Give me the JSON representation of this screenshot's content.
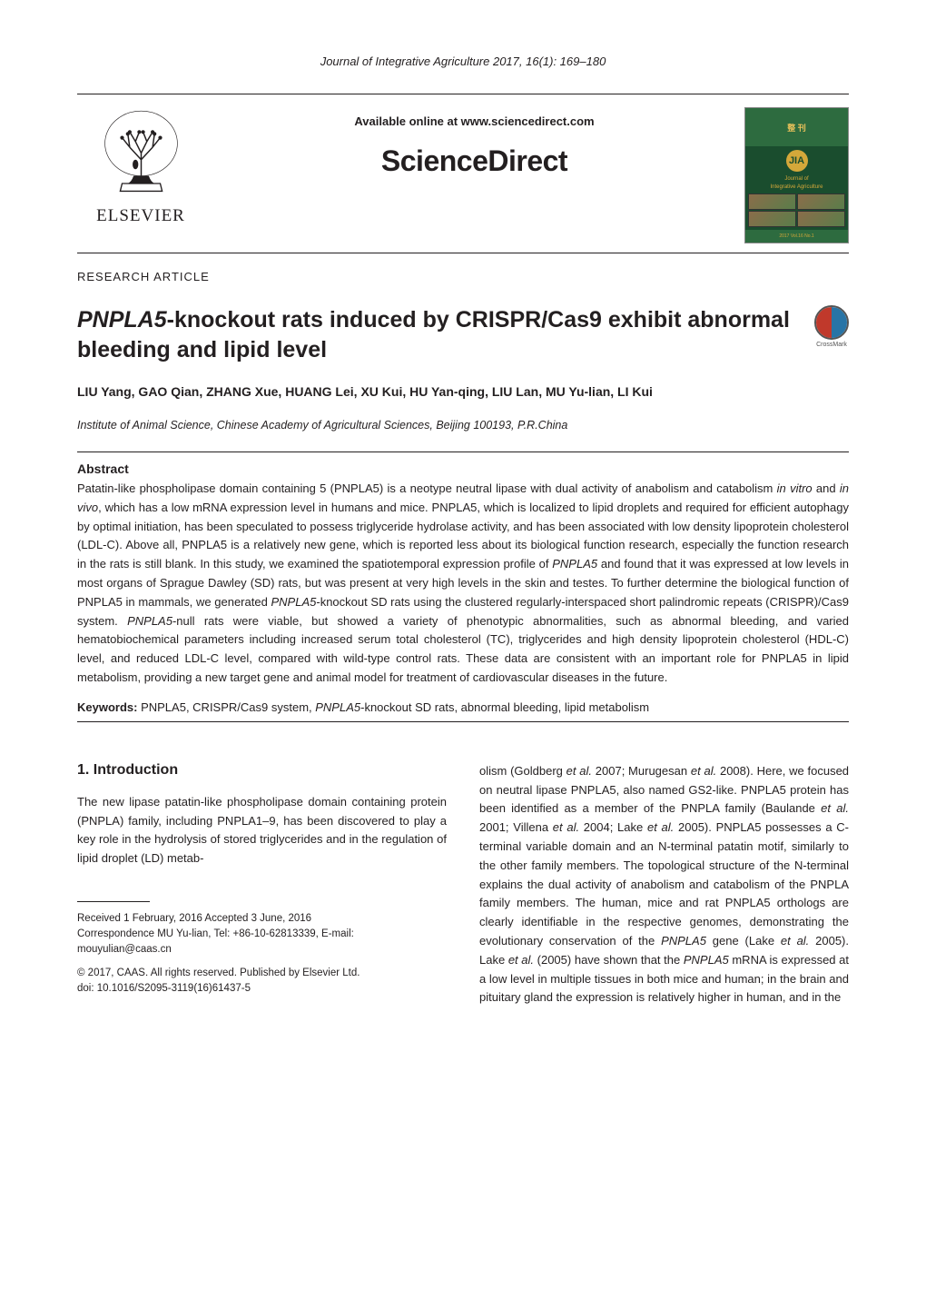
{
  "journalHeader": "Journal of Integrative Agriculture  2017, 16(1): 169–180",
  "availableOnline": "Available online at www.sciencedirect.com",
  "scienceDirect": "ScienceDirect",
  "elsevier": "ELSEVIER",
  "jia": {
    "topLabel": "整 刊",
    "logoText": "JIA",
    "titleLine1": "Journal of",
    "titleLine2": "Integrative Agriculture",
    "bottom": "2017  Vol.16  No.1"
  },
  "articleType": "RESEARCH ARTICLE",
  "title": {
    "prefixItalic": "PNPLA5",
    "rest": "-knockout rats induced by CRISPR/Cas9 exhibit abnormal bleeding and lipid level"
  },
  "crossmarkLabel": "CrossMark",
  "authors": "LIU Yang, GAO Qian, ZHANG Xue, HUANG Lei, XU Kui, HU Yan-qing, LIU Lan, MU Yu-lian, LI Kui",
  "affiliation": "Institute of Animal Science, Chinese Academy of Agricultural Sciences, Beijing 100193, P.R.China",
  "abstract": {
    "heading": "Abstract",
    "text": "Patatin-like phospholipase domain containing 5 (PNPLA5) is a neotype neutral lipase with dual activity of anabolism and catabolism in vitro and in vivo, which has a low mRNA expression level in humans and mice.  PNPLA5, which is localized to lipid droplets and required for efficient autophagy by optimal initiation, has been speculated to possess triglyceride hydrolase activity, and has been associated with low density lipoprotein cholesterol (LDL-C).  Above all, PNPLA5 is a relatively new gene, which is reported less about its biological function research, especially the function research in the rats is still blank.  In this study, we examined the spatiotemporal expression profile of PNPLA5 and found that it was expressed at low levels in most organs of Sprague Dawley (SD) rats, but was present at very high levels in the skin and testes.  To further determine the biological function of PNPLA5 in mammals, we generated PNPLA5-knockout SD rats using the clustered regularly-interspaced short palindromic repeats (CRISPR)/Cas9 system.  PNPLA5-null rats were viable, but showed a variety of phenotypic abnormalities, such as abnormal bleeding, and varied hematobiochemical parameters including increased serum total cholesterol (TC), triglycerides and high density lipoprotein cholesterol (HDL-C) level, and reduced LDL-C level, compared with wild-type control rats.  These data are consistent with an important role for PNPLA5 in lipid metabolism, providing a new target gene and animal model for treatment of cardiovascular diseases in the future."
  },
  "keywords": {
    "label": "Keywords:",
    "text": " PNPLA5, CRISPR/Cas9 system, PNPLA5-knockout SD rats, abnormal bleeding, lipid metabolism"
  },
  "introduction": {
    "heading": "1. Introduction",
    "leftText": "The new lipase patatin-like phospholipase domain containing protein (PNPLA) family, including PNPLA1–9, has been discovered to play a key role in the hydrolysis of stored triglycerides and in the regulation of lipid droplet (LD) metab-",
    "rightText": "olism (Goldberg et al. 2007; Murugesan et al. 2008).  Here, we focused on neutral lipase PNPLA5, also named GS2-like.  PNPLA5 protein has been identified as a member of the PNPLA family (Baulande et al. 2001; Villena et al. 2004; Lake et al. 2005).  PNPLA5 possesses a C-terminal variable domain and an N-terminal patatin motif, similarly to the other family members.  The topological structure of the N-terminal explains the dual activity of anabolism and catabolism of the PNPLA family members.  The human, mice and rat PNPLA5 orthologs are clearly identifiable in the respective genomes, demonstrating the evolutionary conservation of the PNPLA5 gene (Lake et al. 2005).  Lake et al. (2005) have shown that the PNPLA5 mRNA is expressed at a low level in multiple tissues in both mice and human; in the brain and pituitary gland the expression is relatively higher in human, and in the"
  },
  "footnote": {
    "line1": "Received  1 February, 2016    Accepted  3 June, 2016",
    "line2": "Correspondence MU Yu-lian, Tel: +86-10-62813339, E-mail: mouyulian@caas.cn",
    "line3": "© 2017, CAAS. All rights reserved. Published by Elsevier Ltd.",
    "line4": "doi: 10.1016/S2095-3119(16)61437-5"
  },
  "colors": {
    "text": "#231f20",
    "jia_bg": "#1a4d2e",
    "jia_accent": "#d4a83a",
    "crossmark_left": "#c0392b",
    "crossmark_right": "#2874a6"
  }
}
